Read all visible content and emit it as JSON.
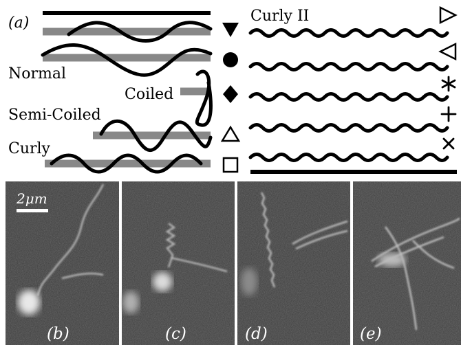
{
  "diagram": {
    "panel_a_label": "(a)",
    "left_labels": {
      "normal": "Normal",
      "coiled": "Coiled",
      "semi_coiled": "Semi-Coiled",
      "curly": "Curly"
    },
    "right_label": "Curly II",
    "legend_markers_left": [
      "filled-down-triangle",
      "filled-circle",
      "filled-diamond",
      "open-up-triangle",
      "open-square"
    ],
    "legend_markers_right": [
      "open-right-triangle",
      "open-left-triangle",
      "asterisk",
      "plus",
      "cross"
    ]
  },
  "micrographs": {
    "scale_bar_label": "2μm",
    "panels": [
      {
        "label": "(b)"
      },
      {
        "label": "(c)"
      },
      {
        "label": "(d)"
      },
      {
        "label": "(e)"
      }
    ]
  }
}
